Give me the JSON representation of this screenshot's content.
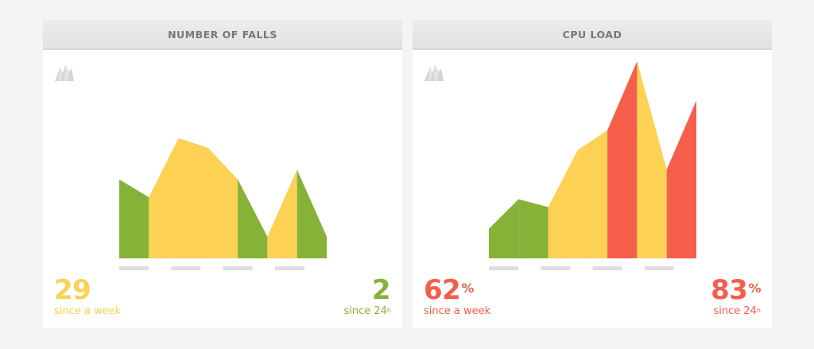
{
  "colors": {
    "green": "#86b237",
    "yellow": "#fdd153",
    "red": "#f65e4c",
    "tick": "#dedede",
    "icon": "#d5d5d8"
  },
  "panels": [
    {
      "title": "NUMBER OF FALLS",
      "icon": "mountain-icon",
      "left_stat": {
        "value": "29",
        "unit": "",
        "label": "since a week",
        "label_sup": "",
        "color": "yellow"
      },
      "right_stat": {
        "value": "2",
        "unit": "",
        "label": "since 24",
        "label_sup": "h",
        "color": "green"
      }
    },
    {
      "title": "CPU LOAD",
      "icon": "mountain-icon",
      "left_stat": {
        "value": "62",
        "unit": "%",
        "label": "since a week",
        "label_sup": "",
        "color": "red"
      },
      "right_stat": {
        "value": "83",
        "unit": "%",
        "label": "since 24",
        "label_sup": "h",
        "color": "red"
      }
    }
  ],
  "chart_data": [
    {
      "type": "area",
      "title": "NUMBER OF FALLS",
      "xlabel": "",
      "ylabel": "",
      "ylim": [
        0,
        100
      ],
      "x": [
        0,
        1,
        2,
        3,
        4,
        5,
        6,
        7
      ],
      "values": [
        40,
        31,
        61,
        56,
        40,
        11,
        45,
        11
      ],
      "segment_colors": [
        "green",
        "yellow",
        "yellow",
        "yellow",
        "green",
        "yellow",
        "green"
      ],
      "tick_labels": [
        "",
        "",
        "",
        ""
      ],
      "grid": false,
      "legend": "none"
    },
    {
      "type": "area",
      "title": "CPU LOAD",
      "xlabel": "",
      "ylabel": "",
      "ylim": [
        0,
        100
      ],
      "x": [
        0,
        1,
        2,
        3,
        4,
        5,
        6,
        7
      ],
      "values": [
        15,
        30,
        26,
        55,
        65,
        100,
        45,
        80
      ],
      "segment_colors": [
        "green",
        "green",
        "yellow",
        "yellow",
        "red",
        "yellow",
        "red"
      ],
      "tick_labels": [
        "",
        "",
        "",
        ""
      ],
      "grid": false,
      "legend": "none"
    }
  ]
}
